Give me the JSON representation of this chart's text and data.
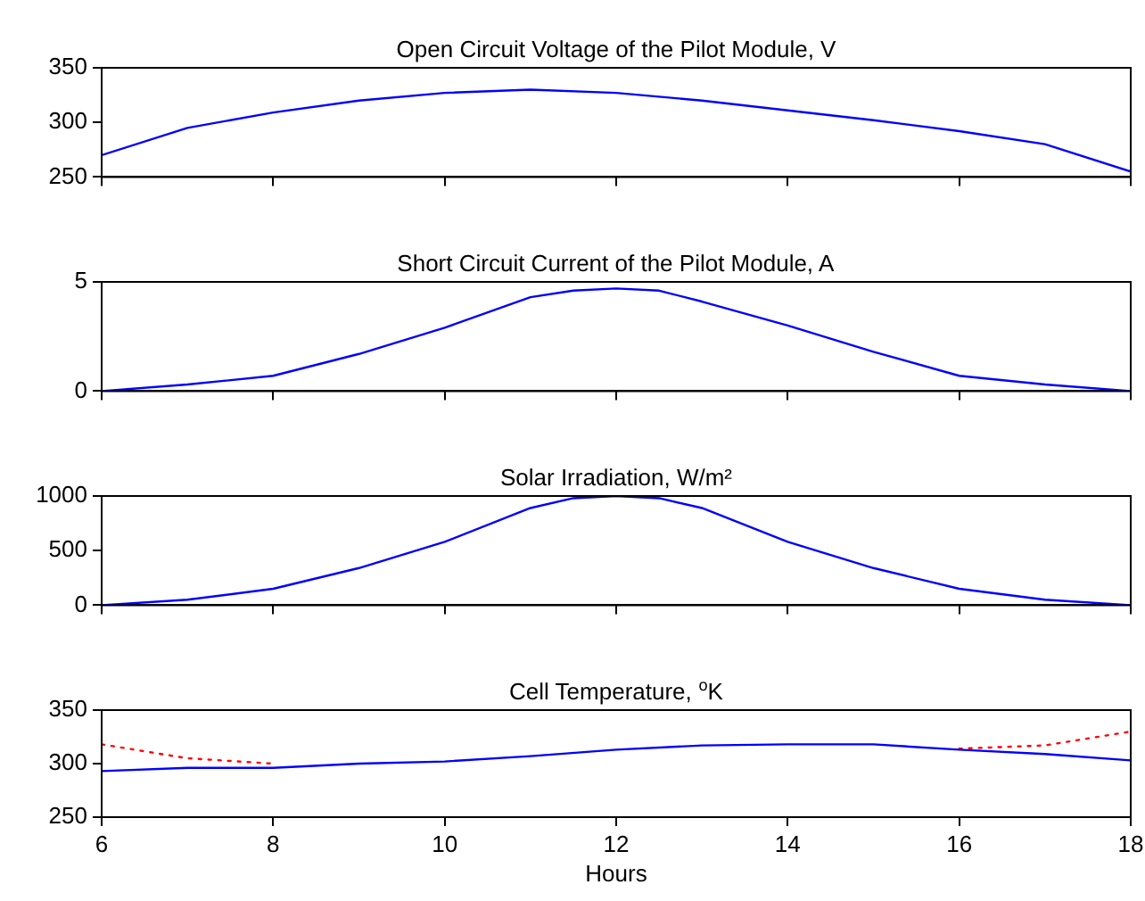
{
  "chart_data": [
    {
      "type": "line",
      "title": "Open Circuit Voltage of the Pilot Module, V",
      "xlim": [
        6,
        18
      ],
      "xticks": [
        6,
        8,
        10,
        12,
        14,
        16,
        18
      ],
      "ylim": [
        250,
        350
      ],
      "yticks": [
        250,
        300,
        350
      ],
      "tick_labels": "y",
      "grid": false,
      "legend": false,
      "marker": "none",
      "series": [
        {
          "color": "#0000ff",
          "line_style": "solid",
          "x": [
            6,
            7,
            8,
            9,
            10,
            11,
            12,
            13,
            14,
            15,
            16,
            17,
            18
          ],
          "values": [
            270,
            295,
            309,
            320,
            327,
            330,
            327,
            320,
            311,
            302,
            292,
            280,
            255
          ]
        }
      ]
    },
    {
      "type": "line",
      "title": "Short Circuit Current of the Pilot Module, A",
      "xlim": [
        6,
        18
      ],
      "xticks": [
        6,
        8,
        10,
        12,
        14,
        16,
        18
      ],
      "ylim": [
        0,
        5
      ],
      "yticks": [
        0,
        5
      ],
      "tick_labels": "y",
      "grid": false,
      "legend": false,
      "marker": "none",
      "series": [
        {
          "color": "#0000ff",
          "line_style": "solid",
          "x": [
            6,
            7,
            8,
            9,
            10,
            11,
            11.5,
            12,
            12.5,
            13,
            14,
            15,
            16,
            17,
            18
          ],
          "values": [
            0,
            0.3,
            0.7,
            1.7,
            2.9,
            4.3,
            4.6,
            4.7,
            4.6,
            4.1,
            3,
            1.8,
            0.7,
            0.3,
            0
          ]
        }
      ]
    },
    {
      "type": "line",
      "title": "Solar Irradiation, W/m²",
      "xlim": [
        6,
        18
      ],
      "xticks": [
        6,
        8,
        10,
        12,
        14,
        16,
        18
      ],
      "ylim": [
        0,
        1000
      ],
      "yticks": [
        0,
        500,
        1000
      ],
      "tick_labels": "y",
      "grid": false,
      "legend": false,
      "marker": "none",
      "series": [
        {
          "color": "#0000ff",
          "line_style": "solid",
          "x": [
            6,
            7,
            8,
            9,
            10,
            11,
            11.5,
            12,
            12.5,
            13,
            14,
            15,
            16,
            17,
            18
          ],
          "values": [
            0,
            50,
            150,
            340,
            580,
            890,
            980,
            1000,
            980,
            890,
            580,
            340,
            150,
            50,
            0
          ]
        }
      ]
    },
    {
      "type": "line",
      "title": "Cell Temperature, $^{o}$K",
      "xlabel": "Hours",
      "xlim": [
        6,
        18
      ],
      "xticks": [
        6,
        8,
        10,
        12,
        14,
        16,
        18
      ],
      "ylim": [
        250,
        350
      ],
      "yticks": [
        250,
        300,
        350
      ],
      "grid": false,
      "legend": false,
      "marker": "none",
      "series": [
        {
          "color": "#0000ff",
          "line_style": "solid",
          "x": [
            6,
            7,
            8,
            9,
            10,
            11,
            12,
            13,
            14,
            15,
            16,
            17,
            18
          ],
          "values": [
            293,
            296,
            296,
            300,
            302,
            307,
            313,
            317,
            318,
            318,
            313,
            309,
            303
          ]
        },
        {
          "color": "#ff0000",
          "line_style": "dotted",
          "x": [
            6,
            7,
            8,
            9,
            10,
            11,
            12,
            13,
            14,
            15,
            16,
            17,
            18
          ],
          "values": [
            318,
            305,
            300,
            null,
            null,
            null,
            null,
            null,
            null,
            null,
            314,
            317,
            330
          ]
        }
      ]
    }
  ]
}
